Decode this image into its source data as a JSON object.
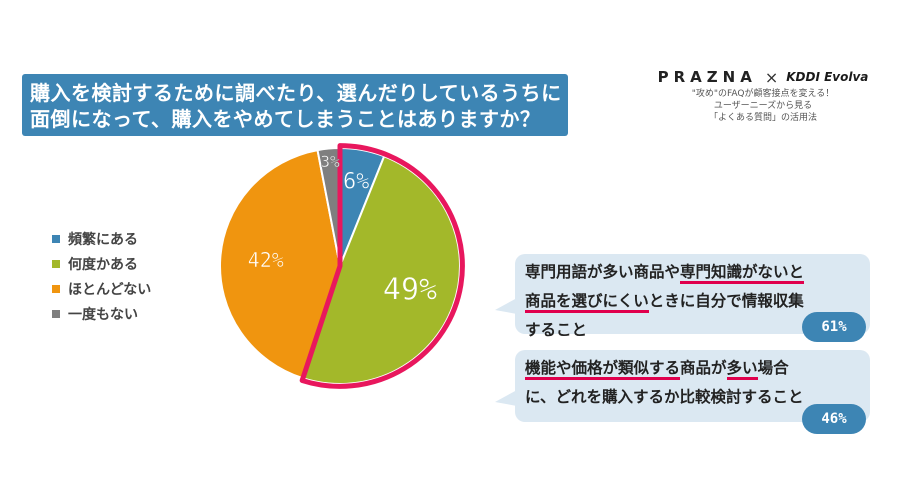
{
  "question": {
    "line1": "購入を検討するために調べたり、選んだりしているうちに",
    "line2": "面倒になって、購入をやめてしまうことはありますか？"
  },
  "brand": {
    "prazna": "PRAZNA",
    "times": "×",
    "kddi": "KDDI",
    "evolva": "Evolva",
    "tagline1": "\"攻め\"のFAQが顧客接点を変える！",
    "tagline2": "ユーザーニーズから見る",
    "tagline3": "「よくある質問」の活用法"
  },
  "chart_data": {
    "type": "pie",
    "title": "",
    "slices": [
      {
        "label": "頻繁にある",
        "value": 6,
        "display": "6%",
        "color": "#3d85b4"
      },
      {
        "label": "何度かある",
        "value": 49,
        "display": "49%",
        "color": "#a3b82a"
      },
      {
        "label": "ほとんどない",
        "value": 42,
        "display": "42%",
        "color": "#f0950f"
      },
      {
        "label": "一度もない",
        "value": 3,
        "display": "3%",
        "color": "#7f7f7f"
      }
    ],
    "highlight": [
      "頻繁にある",
      "何度かある"
    ],
    "highlight_color": "#e8175d",
    "legend_position": "left"
  },
  "callouts": [
    {
      "line1_a": "専門用語が多い商品や",
      "line1_b": "専門知識がないと",
      "line2_a": "商品を選びにくい",
      "line2_b": "ときに自分で情報収集",
      "line3": "すること",
      "percent": "61%"
    },
    {
      "line1_a": "機能や価格が",
      "line1_b": "類似する",
      "line1_c": "商品が",
      "line1_d": "多い",
      "line1_e": "場合",
      "line2": "に、どれを購入するか比較検討すること",
      "percent": "46%"
    }
  ]
}
